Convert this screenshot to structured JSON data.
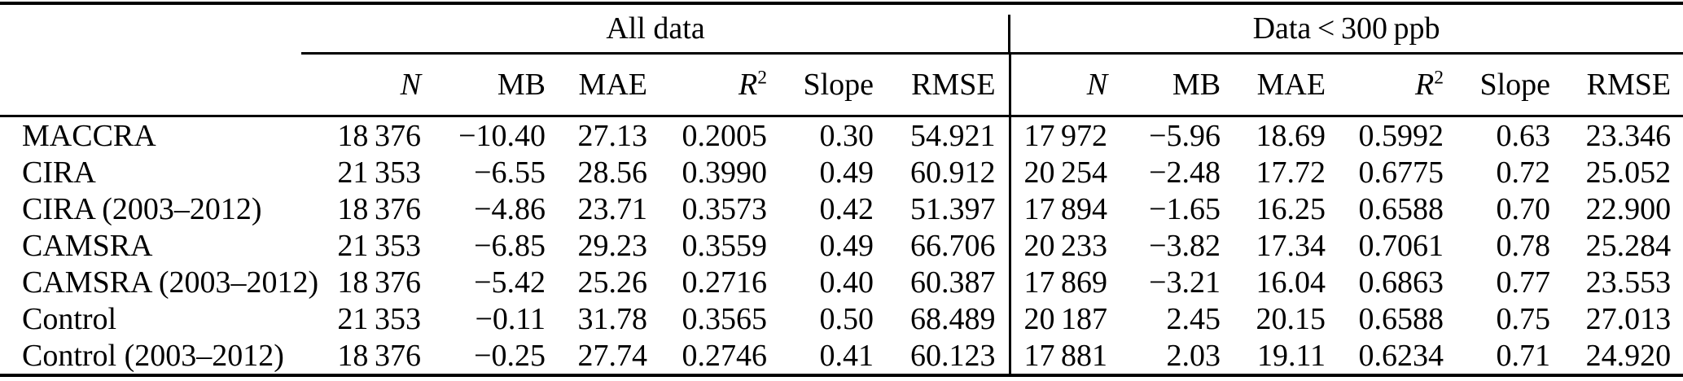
{
  "table": {
    "group_headers": {
      "all_data": "All data",
      "lt300": "Data < 300 ppb"
    },
    "columns_all_data": [
      {
        "label": "N",
        "italic": true
      },
      {
        "label": "MB"
      },
      {
        "label": "MAE"
      },
      {
        "label": "R",
        "sup": "2",
        "italic": true
      },
      {
        "label": "Slope"
      },
      {
        "label": "RMSE"
      }
    ],
    "columns_lt300": [
      {
        "label": "N",
        "italic": true
      },
      {
        "label": "MB"
      },
      {
        "label": "MAE"
      },
      {
        "label": "R",
        "sup": "2",
        "italic": true
      },
      {
        "label": "Slope"
      },
      {
        "label": "RMSE"
      }
    ],
    "column_keys": [
      "n",
      "mb",
      "mae",
      "r2",
      "slope",
      "rmse"
    ],
    "rows": [
      {
        "label": "MACCRA",
        "all_data": [
          "18 376",
          "−10.40",
          "27.13",
          "0.2005",
          "0.30",
          "54.921"
        ],
        "lt300": [
          "17 972",
          "−5.96",
          "18.69",
          "0.5992",
          "0.63",
          "23.346"
        ]
      },
      {
        "label": "CIRA",
        "all_data": [
          "21 353",
          "−6.55",
          "28.56",
          "0.3990",
          "0.49",
          "60.912"
        ],
        "lt300": [
          "20 254",
          "−2.48",
          "17.72",
          "0.6775",
          "0.72",
          "25.052"
        ]
      },
      {
        "label": "CIRA (2003–2012)",
        "all_data": [
          "18 376",
          "−4.86",
          "23.71",
          "0.3573",
          "0.42",
          "51.397"
        ],
        "lt300": [
          "17 894",
          "−1.65",
          "16.25",
          "0.6588",
          "0.70",
          "22.900"
        ]
      },
      {
        "label": "CAMSRA",
        "all_data": [
          "21 353",
          "−6.85",
          "29.23",
          "0.3559",
          "0.49",
          "66.706"
        ],
        "lt300": [
          "20 233",
          "−3.82",
          "17.34",
          "0.7061",
          "0.78",
          "25.284"
        ]
      },
      {
        "label": "CAMSRA (2003–2012)",
        "all_data": [
          "18 376",
          "−5.42",
          "25.26",
          "0.2716",
          "0.40",
          "60.387"
        ],
        "lt300": [
          "17 869",
          "−3.21",
          "16.04",
          "0.6863",
          "0.77",
          "23.553"
        ]
      },
      {
        "label": "Control",
        "all_data": [
          "21 353",
          "−0.11",
          "31.78",
          "0.3565",
          "0.50",
          "68.489"
        ],
        "lt300": [
          "20 187",
          "2.45",
          "20.15",
          "0.6588",
          "0.75",
          "27.013"
        ]
      },
      {
        "label": "Control (2003–2012)",
        "all_data": [
          "18 376",
          "−0.25",
          "27.74",
          "0.2746",
          "0.41",
          "60.123"
        ],
        "lt300": [
          "17 881",
          "2.03",
          "19.11",
          "0.6234",
          "0.71",
          "24.920"
        ]
      }
    ]
  }
}
